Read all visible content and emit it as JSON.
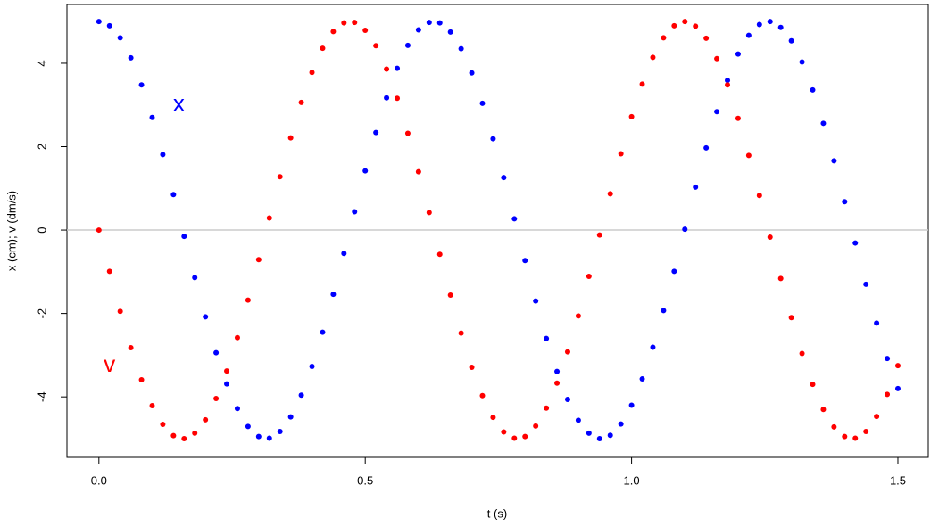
{
  "chart_data": {
    "type": "scatter",
    "xlabel": "t (s)",
    "ylabel": "x (cm); v (dm/s)",
    "x": [
      0,
      0.02,
      0.04,
      0.06,
      0.08,
      0.1,
      0.12,
      0.14,
      0.16,
      0.18,
      0.2,
      0.22,
      0.24,
      0.26,
      0.28,
      0.3,
      0.32,
      0.34,
      0.36,
      0.38,
      0.4,
      0.42,
      0.44,
      0.46,
      0.48,
      0.5,
      0.52,
      0.54,
      0.56,
      0.58,
      0.6,
      0.62,
      0.64,
      0.66,
      0.68,
      0.7,
      0.72,
      0.74,
      0.76,
      0.78,
      0.8,
      0.82,
      0.84,
      0.86,
      0.88,
      0.9,
      0.92,
      0.94,
      0.96,
      0.98,
      1,
      1.02,
      1.04,
      1.06,
      1.08,
      1.1,
      1.12,
      1.14,
      1.16,
      1.18,
      1.2,
      1.22,
      1.24,
      1.26,
      1.28,
      1.3,
      1.32,
      1.34,
      1.36,
      1.38,
      1.4,
      1.42,
      1.44,
      1.46,
      1.48,
      1.5
    ],
    "series": [
      {
        "name": "x",
        "color": "#0000ff",
        "values": [
          5,
          4.9,
          4.61,
          4.13,
          3.48,
          2.7,
          1.81,
          0.85,
          -0.15,
          -1.14,
          -2.08,
          -2.94,
          -3.69,
          -4.28,
          -4.71,
          -4.95,
          -4.99,
          -4.83,
          -4.48,
          -3.96,
          -3.27,
          -2.45,
          -1.54,
          -0.56,
          0.44,
          1.42,
          2.34,
          3.17,
          3.88,
          4.43,
          4.8,
          4.98,
          4.97,
          4.75,
          4.35,
          3.77,
          3.04,
          2.19,
          1.26,
          0.27,
          -0.73,
          -1.7,
          -2.6,
          -3.39,
          -4.06,
          -4.56,
          -4.87,
          -5.0,
          -4.92,
          -4.65,
          -4.2,
          -3.57,
          -2.81,
          -1.93,
          -0.99,
          0.02,
          1.03,
          1.97,
          2.84,
          3.59,
          4.22,
          4.67,
          4.93,
          5.0,
          4.86,
          4.54,
          4.03,
          3.36,
          2.56,
          1.66,
          0.68,
          -0.31,
          -1.3,
          -2.23,
          -3.08,
          -3.8
        ]
      },
      {
        "name": "v",
        "color": "#ff0000",
        "values": [
          0,
          -0.99,
          -1.95,
          -2.82,
          -3.59,
          -4.21,
          -4.66,
          -4.93,
          -5.0,
          -4.87,
          -4.55,
          -4.04,
          -3.38,
          -2.58,
          -1.68,
          -0.71,
          0.29,
          1.28,
          2.21,
          3.06,
          3.78,
          4.36,
          4.76,
          4.97,
          4.98,
          4.79,
          4.42,
          3.86,
          3.16,
          2.32,
          1.4,
          0.42,
          -0.58,
          -1.56,
          -2.47,
          -3.29,
          -3.97,
          -4.49,
          -4.84,
          -4.99,
          -4.95,
          -4.7,
          -4.27,
          -3.67,
          -2.92,
          -2.06,
          -1.11,
          -0.12,
          0.87,
          1.83,
          2.72,
          3.5,
          4.14,
          4.61,
          4.9,
          5.0,
          4.89,
          4.6,
          4.11,
          3.48,
          2.68,
          1.79,
          0.83,
          -0.17,
          -1.16,
          -2.1,
          -2.96,
          -3.7,
          -4.3,
          -4.72,
          -4.95,
          -4.99,
          -4.83,
          -4.47,
          -3.94,
          -3.25
        ]
      }
    ],
    "annotations": [
      {
        "text": "x",
        "x": 0.15,
        "y": 3.0,
        "color": "#0000ff"
      },
      {
        "text": "v",
        "x": 0.02,
        "y": -3.25,
        "color": "#ff0000"
      }
    ],
    "xlim": [
      -0.06,
      1.557
    ],
    "ylim": [
      -5.45,
      5.41
    ],
    "xticks": [
      {
        "value": 0,
        "label": "0.0"
      },
      0.5,
      {
        "value": 1,
        "label": "1.0"
      },
      1.5
    ],
    "yticks": [
      -4,
      -2,
      0,
      2,
      4
    ]
  }
}
